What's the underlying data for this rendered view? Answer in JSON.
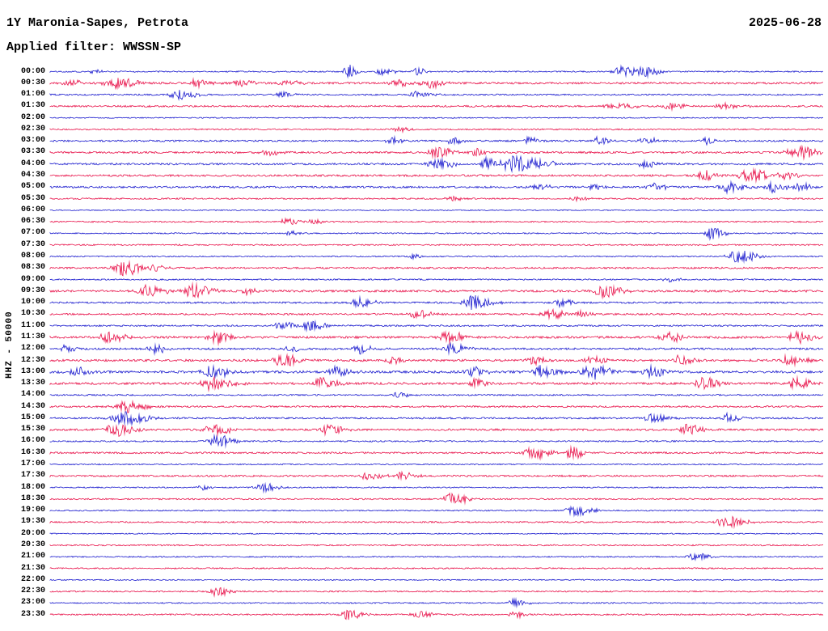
{
  "header": {
    "station_title": "1Y Maronia-Sapes, Petrota",
    "date": "2025-06-28",
    "filter_label": "Applied filter: WWSSN-SP"
  },
  "y_axis": {
    "label": "HHZ - 50000"
  },
  "colors": {
    "background": "#ffffff",
    "text": "#000000",
    "trace_red": "#e8124a",
    "trace_blue": "#1b1bce"
  },
  "chart_data": {
    "type": "line",
    "variant": "helicorder-seismogram",
    "title": "1Y Maronia-Sapes, Petrota",
    "date": "2025-06-28",
    "filter": "WWSSN-SP",
    "channel": "HHZ",
    "scale": 50000,
    "minutes_per_row": 30,
    "row_color_cycle": [
      "blue",
      "red"
    ],
    "rows": [
      {
        "time": "00:00",
        "color": "blue",
        "noise": 0.55,
        "events": [
          {
            "x": 0.056,
            "amp": 1.2,
            "w": 0.004
          },
          {
            "x": 0.385,
            "amp": 4.0,
            "w": 0.0035
          },
          {
            "x": 0.43,
            "amp": 1.6,
            "w": 0.006
          },
          {
            "x": 0.475,
            "amp": 1.8,
            "w": 0.005
          },
          {
            "x": 0.74,
            "amp": 2.8,
            "w": 0.008
          },
          {
            "x": 0.77,
            "amp": 2.4,
            "w": 0.006
          }
        ]
      },
      {
        "time": "00:30",
        "color": "red",
        "noise": 0.8,
        "events": [
          {
            "x": 0.025,
            "amp": 1.5,
            "w": 0.006
          },
          {
            "x": 0.085,
            "amp": 2.6,
            "w": 0.01
          },
          {
            "x": 0.19,
            "amp": 2.0,
            "w": 0.007
          },
          {
            "x": 0.245,
            "amp": 1.8,
            "w": 0.006
          },
          {
            "x": 0.305,
            "amp": 1.6,
            "w": 0.006
          },
          {
            "x": 0.45,
            "amp": 1.7,
            "w": 0.006
          },
          {
            "x": 0.49,
            "amp": 2.2,
            "w": 0.007
          }
        ]
      },
      {
        "time": "01:00",
        "color": "blue",
        "noise": 0.6,
        "events": [
          {
            "x": 0.165,
            "amp": 2.4,
            "w": 0.008
          },
          {
            "x": 0.3,
            "amp": 1.4,
            "w": 0.005
          },
          {
            "x": 0.475,
            "amp": 1.9,
            "w": 0.006
          }
        ]
      },
      {
        "time": "01:30",
        "color": "red",
        "noise": 0.7,
        "events": [
          {
            "x": 0.73,
            "amp": 1.5,
            "w": 0.01
          },
          {
            "x": 0.8,
            "amp": 1.4,
            "w": 0.008
          },
          {
            "x": 0.87,
            "amp": 1.3,
            "w": 0.008
          }
        ]
      },
      {
        "time": "02:00",
        "color": "blue",
        "noise": 0.45,
        "events": []
      },
      {
        "time": "02:30",
        "color": "red",
        "noise": 0.55,
        "events": [
          {
            "x": 0.45,
            "amp": 1.2,
            "w": 0.005
          }
        ]
      },
      {
        "time": "03:00",
        "color": "blue",
        "noise": 0.7,
        "events": [
          {
            "x": 0.44,
            "amp": 1.6,
            "w": 0.005
          },
          {
            "x": 0.52,
            "amp": 1.8,
            "w": 0.005
          },
          {
            "x": 0.62,
            "amp": 2.2,
            "w": 0.004
          },
          {
            "x": 0.71,
            "amp": 2.0,
            "w": 0.005
          },
          {
            "x": 0.77,
            "amp": 1.8,
            "w": 0.005
          },
          {
            "x": 0.85,
            "amp": 1.6,
            "w": 0.005
          }
        ]
      },
      {
        "time": "03:30",
        "color": "red",
        "noise": 0.8,
        "events": [
          {
            "x": 0.28,
            "amp": 1.5,
            "w": 0.006
          },
          {
            "x": 0.5,
            "amp": 2.8,
            "w": 0.007
          },
          {
            "x": 0.55,
            "amp": 1.8,
            "w": 0.005
          },
          {
            "x": 0.965,
            "amp": 3.0,
            "w": 0.009
          }
        ]
      },
      {
        "time": "04:00",
        "color": "blue",
        "noise": 0.75,
        "events": [
          {
            "x": 0.5,
            "amp": 2.4,
            "w": 0.008
          },
          {
            "x": 0.565,
            "amp": 2.8,
            "w": 0.006
          },
          {
            "x": 0.6,
            "amp": 4.2,
            "w": 0.009
          },
          {
            "x": 0.635,
            "amp": 2.6,
            "w": 0.006
          },
          {
            "x": 0.77,
            "amp": 2.0,
            "w": 0.006
          }
        ]
      },
      {
        "time": "04:30",
        "color": "red",
        "noise": 0.8,
        "events": [
          {
            "x": 0.845,
            "amp": 2.2,
            "w": 0.007
          },
          {
            "x": 0.905,
            "amp": 3.0,
            "w": 0.009
          },
          {
            "x": 0.95,
            "amp": 1.8,
            "w": 0.006
          }
        ]
      },
      {
        "time": "05:00",
        "color": "blue",
        "noise": 0.8,
        "events": [
          {
            "x": 0.63,
            "amp": 1.6,
            "w": 0.006
          },
          {
            "x": 0.7,
            "amp": 1.5,
            "w": 0.005
          },
          {
            "x": 0.78,
            "amp": 2.0,
            "w": 0.006
          },
          {
            "x": 0.875,
            "amp": 2.6,
            "w": 0.008
          },
          {
            "x": 0.935,
            "amp": 2.4,
            "w": 0.006
          },
          {
            "x": 0.97,
            "amp": 1.8,
            "w": 0.005
          }
        ]
      },
      {
        "time": "05:30",
        "color": "red",
        "noise": 0.6,
        "events": [
          {
            "x": 0.52,
            "amp": 1.3,
            "w": 0.005
          },
          {
            "x": 0.68,
            "amp": 1.2,
            "w": 0.005
          }
        ]
      },
      {
        "time": "06:00",
        "color": "blue",
        "noise": 0.45,
        "events": []
      },
      {
        "time": "06:30",
        "color": "red",
        "noise": 0.55,
        "events": [
          {
            "x": 0.305,
            "amp": 1.6,
            "w": 0.006
          },
          {
            "x": 0.34,
            "amp": 1.4,
            "w": 0.005
          }
        ]
      },
      {
        "time": "07:00",
        "color": "blue",
        "noise": 0.5,
        "events": [
          {
            "x": 0.31,
            "amp": 1.2,
            "w": 0.004
          },
          {
            "x": 0.855,
            "amp": 2.8,
            "w": 0.006
          }
        ]
      },
      {
        "time": "07:30",
        "color": "red",
        "noise": 0.55,
        "events": []
      },
      {
        "time": "08:00",
        "color": "blue",
        "noise": 0.5,
        "events": [
          {
            "x": 0.47,
            "amp": 1.3,
            "w": 0.004
          },
          {
            "x": 0.89,
            "amp": 2.8,
            "w": 0.009
          }
        ]
      },
      {
        "time": "08:30",
        "color": "red",
        "noise": 0.7,
        "events": [
          {
            "x": 0.095,
            "amp": 3.8,
            "w": 0.009
          },
          {
            "x": 0.135,
            "amp": 1.8,
            "w": 0.005
          }
        ]
      },
      {
        "time": "09:00",
        "color": "blue",
        "noise": 0.55,
        "events": [
          {
            "x": 0.8,
            "amp": 1.2,
            "w": 0.005
          }
        ]
      },
      {
        "time": "09:30",
        "color": "red",
        "noise": 0.85,
        "events": [
          {
            "x": 0.125,
            "amp": 2.8,
            "w": 0.008
          },
          {
            "x": 0.185,
            "amp": 3.2,
            "w": 0.009
          },
          {
            "x": 0.255,
            "amp": 1.8,
            "w": 0.005
          },
          {
            "x": 0.715,
            "amp": 3.0,
            "w": 0.008
          }
        ]
      },
      {
        "time": "10:00",
        "color": "blue",
        "noise": 0.7,
        "events": [
          {
            "x": 0.4,
            "amp": 2.4,
            "w": 0.007
          },
          {
            "x": 0.545,
            "amp": 3.2,
            "w": 0.009
          },
          {
            "x": 0.66,
            "amp": 2.0,
            "w": 0.006
          }
        ]
      },
      {
        "time": "10:30",
        "color": "red",
        "noise": 0.7,
        "events": [
          {
            "x": 0.475,
            "amp": 2.4,
            "w": 0.007
          },
          {
            "x": 0.645,
            "amp": 2.8,
            "w": 0.007
          },
          {
            "x": 0.685,
            "amp": 1.8,
            "w": 0.005
          }
        ]
      },
      {
        "time": "11:00",
        "color": "blue",
        "noise": 0.65,
        "events": [
          {
            "x": 0.3,
            "amp": 2.0,
            "w": 0.006
          },
          {
            "x": 0.335,
            "amp": 2.8,
            "w": 0.007
          }
        ]
      },
      {
        "time": "11:30",
        "color": "red",
        "noise": 0.9,
        "events": [
          {
            "x": 0.075,
            "amp": 2.8,
            "w": 0.007
          },
          {
            "x": 0.215,
            "amp": 2.8,
            "w": 0.007
          },
          {
            "x": 0.515,
            "amp": 2.8,
            "w": 0.007
          },
          {
            "x": 0.8,
            "amp": 2.4,
            "w": 0.007
          },
          {
            "x": 0.965,
            "amp": 2.8,
            "w": 0.007
          }
        ]
      },
      {
        "time": "12:00",
        "color": "blue",
        "noise": 0.8,
        "events": [
          {
            "x": 0.02,
            "amp": 1.6,
            "w": 0.005
          },
          {
            "x": 0.135,
            "amp": 2.0,
            "w": 0.006
          },
          {
            "x": 0.31,
            "amp": 1.6,
            "w": 0.005
          },
          {
            "x": 0.4,
            "amp": 2.4,
            "w": 0.006
          },
          {
            "x": 0.52,
            "amp": 2.4,
            "w": 0.007
          }
        ]
      },
      {
        "time": "12:30",
        "color": "red",
        "noise": 0.9,
        "events": [
          {
            "x": 0.3,
            "amp": 3.0,
            "w": 0.008
          },
          {
            "x": 0.44,
            "amp": 1.8,
            "w": 0.005
          },
          {
            "x": 0.625,
            "amp": 2.4,
            "w": 0.006
          },
          {
            "x": 0.7,
            "amp": 2.0,
            "w": 0.006
          },
          {
            "x": 0.815,
            "amp": 2.4,
            "w": 0.006
          },
          {
            "x": 0.955,
            "amp": 2.8,
            "w": 0.008
          }
        ]
      },
      {
        "time": "13:00",
        "color": "blue",
        "noise": 1.0,
        "events": [
          {
            "x": 0.03,
            "amp": 2.4,
            "w": 0.007
          },
          {
            "x": 0.21,
            "amp": 2.8,
            "w": 0.008
          },
          {
            "x": 0.37,
            "amp": 2.4,
            "w": 0.007
          },
          {
            "x": 0.545,
            "amp": 2.4,
            "w": 0.006
          },
          {
            "x": 0.635,
            "amp": 2.8,
            "w": 0.007
          },
          {
            "x": 0.7,
            "amp": 3.2,
            "w": 0.009
          },
          {
            "x": 0.775,
            "amp": 2.8,
            "w": 0.007
          }
        ]
      },
      {
        "time": "13:30",
        "color": "red",
        "noise": 0.9,
        "events": [
          {
            "x": 0.21,
            "amp": 3.2,
            "w": 0.009
          },
          {
            "x": 0.35,
            "amp": 2.8,
            "w": 0.007
          },
          {
            "x": 0.55,
            "amp": 2.4,
            "w": 0.006
          },
          {
            "x": 0.845,
            "amp": 3.0,
            "w": 0.008
          },
          {
            "x": 0.965,
            "amp": 2.8,
            "w": 0.007
          }
        ]
      },
      {
        "time": "14:00",
        "color": "blue",
        "noise": 0.6,
        "events": [
          {
            "x": 0.45,
            "amp": 1.4,
            "w": 0.005
          }
        ]
      },
      {
        "time": "14:30",
        "color": "red",
        "noise": 0.7,
        "events": [
          {
            "x": 0.095,
            "amp": 3.2,
            "w": 0.009
          }
        ]
      },
      {
        "time": "15:00",
        "color": "blue",
        "noise": 0.7,
        "events": [
          {
            "x": 0.095,
            "amp": 3.2,
            "w": 0.01
          },
          {
            "x": 0.78,
            "amp": 2.2,
            "w": 0.007
          },
          {
            "x": 0.875,
            "amp": 2.2,
            "w": 0.006
          }
        ]
      },
      {
        "time": "15:30",
        "color": "red",
        "noise": 0.8,
        "events": [
          {
            "x": 0.085,
            "amp": 3.0,
            "w": 0.009
          },
          {
            "x": 0.21,
            "amp": 2.8,
            "w": 0.008
          },
          {
            "x": 0.36,
            "amp": 2.4,
            "w": 0.007
          },
          {
            "x": 0.825,
            "amp": 2.4,
            "w": 0.007
          }
        ]
      },
      {
        "time": "16:00",
        "color": "blue",
        "noise": 0.6,
        "events": [
          {
            "x": 0.215,
            "amp": 2.8,
            "w": 0.008
          }
        ]
      },
      {
        "time": "16:30",
        "color": "red",
        "noise": 0.7,
        "events": [
          {
            "x": 0.625,
            "amp": 3.0,
            "w": 0.008
          },
          {
            "x": 0.675,
            "amp": 2.6,
            "w": 0.006
          }
        ]
      },
      {
        "time": "17:00",
        "color": "blue",
        "noise": 0.5,
        "events": []
      },
      {
        "time": "17:30",
        "color": "red",
        "noise": 0.7,
        "events": [
          {
            "x": 0.41,
            "amp": 1.8,
            "w": 0.007
          },
          {
            "x": 0.455,
            "amp": 1.8,
            "w": 0.006
          }
        ]
      },
      {
        "time": "18:00",
        "color": "blue",
        "noise": 0.5,
        "events": [
          {
            "x": 0.195,
            "amp": 1.3,
            "w": 0.004
          },
          {
            "x": 0.275,
            "amp": 2.2,
            "w": 0.007
          }
        ]
      },
      {
        "time": "18:30",
        "color": "red",
        "noise": 0.6,
        "events": [
          {
            "x": 0.52,
            "amp": 2.8,
            "w": 0.007
          }
        ]
      },
      {
        "time": "19:00",
        "color": "blue",
        "noise": 0.5,
        "events": [
          {
            "x": 0.68,
            "amp": 2.6,
            "w": 0.008
          }
        ]
      },
      {
        "time": "19:30",
        "color": "red",
        "noise": 0.6,
        "events": [
          {
            "x": 0.875,
            "amp": 3.0,
            "w": 0.008
          }
        ]
      },
      {
        "time": "20:00",
        "color": "blue",
        "noise": 0.45,
        "events": []
      },
      {
        "time": "20:30",
        "color": "red",
        "noise": 0.55,
        "events": []
      },
      {
        "time": "21:00",
        "color": "blue",
        "noise": 0.5,
        "events": [
          {
            "x": 0.835,
            "amp": 1.8,
            "w": 0.006
          }
        ]
      },
      {
        "time": "21:30",
        "color": "red",
        "noise": 0.55,
        "events": []
      },
      {
        "time": "22:00",
        "color": "blue",
        "noise": 0.45,
        "events": []
      },
      {
        "time": "22:30",
        "color": "red",
        "noise": 0.55,
        "events": [
          {
            "x": 0.215,
            "amp": 2.2,
            "w": 0.006
          }
        ]
      },
      {
        "time": "23:00",
        "color": "blue",
        "noise": 0.5,
        "events": [
          {
            "x": 0.6,
            "amp": 1.8,
            "w": 0.006
          }
        ]
      },
      {
        "time": "23:30",
        "color": "red",
        "noise": 0.6,
        "events": [
          {
            "x": 0.385,
            "amp": 2.4,
            "w": 0.007
          },
          {
            "x": 0.475,
            "amp": 1.8,
            "w": 0.006
          },
          {
            "x": 0.6,
            "amp": 1.6,
            "w": 0.005
          }
        ]
      }
    ]
  }
}
